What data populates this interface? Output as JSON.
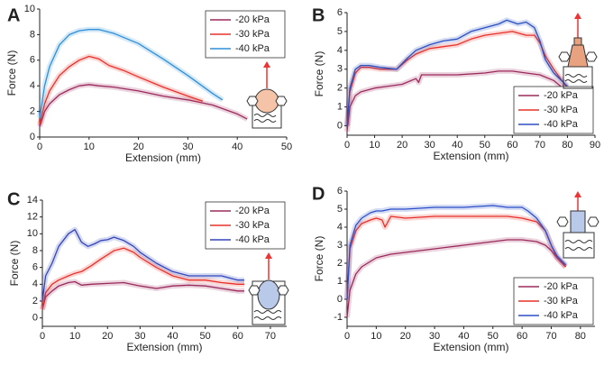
{
  "chart_data": [
    {
      "type": "line",
      "label": "A",
      "xlabel": "Extension (mm)",
      "ylabel": "Force (N)",
      "xlim": [
        0,
        50
      ],
      "xticks": [
        0,
        10,
        20,
        30,
        40,
        50
      ],
      "ylim": [
        0,
        10
      ],
      "yticks": [
        0,
        2,
        4,
        6,
        8,
        10
      ],
      "legend": "upper-right",
      "series": [
        {
          "name": "-20 kPa",
          "color": "#9b2a5c",
          "x": [
            0,
            1,
            2,
            4,
            6,
            8,
            10,
            12,
            15,
            20,
            25,
            30,
            35,
            40,
            42
          ],
          "values": [
            0.8,
            2,
            2.6,
            3.3,
            3.7,
            4,
            4.1,
            4,
            3.9,
            3.6,
            3.2,
            2.9,
            2.5,
            1.8,
            1.4
          ]
        },
        {
          "name": "-30 kPa",
          "color": "#e8302a",
          "x": [
            0,
            1,
            2,
            4,
            6,
            8,
            10,
            12,
            14,
            17,
            20,
            25,
            30,
            33
          ],
          "values": [
            1,
            2.6,
            3.6,
            4.8,
            5.5,
            6,
            6.3,
            6.1,
            5.6,
            5.2,
            4.7,
            3.9,
            3.2,
            2.8
          ]
        },
        {
          "name": "-40 kPa",
          "color": "#2f8fd8",
          "x": [
            0,
            1,
            2,
            4,
            6,
            8,
            10,
            12,
            15,
            20,
            25,
            30,
            35,
            37
          ],
          "values": [
            1.5,
            4,
            5.5,
            7.2,
            8,
            8.3,
            8.4,
            8.4,
            8.1,
            7.3,
            6.1,
            4.8,
            3.4,
            2.9
          ]
        }
      ]
    },
    {
      "type": "line",
      "label": "B",
      "xlabel": "Extension (mm)",
      "ylabel": "Force (N)",
      "xlim": [
        0,
        90
      ],
      "xticks": [
        0,
        10,
        20,
        30,
        40,
        50,
        60,
        70,
        80,
        90
      ],
      "ylim": [
        -0.5,
        6
      ],
      "yticks": [
        0,
        1,
        2,
        3,
        4,
        5,
        6
      ],
      "legend": "lower-right",
      "series": [
        {
          "name": "-20 kPa",
          "color": "#9b2a5c",
          "x": [
            0,
            1,
            3,
            5,
            10,
            15,
            20,
            25,
            26,
            27,
            30,
            40,
            50,
            55,
            60,
            65,
            70,
            75,
            80
          ],
          "values": [
            -0.3,
            1,
            1.6,
            1.8,
            2,
            2.1,
            2.2,
            2.5,
            2.3,
            2.7,
            2.7,
            2.7,
            2.8,
            2.9,
            2.9,
            2.8,
            2.7,
            2.4,
            1.8
          ]
        },
        {
          "name": "-30 kPa",
          "color": "#e8302a",
          "x": [
            0,
            1,
            3,
            5,
            8,
            12,
            18,
            22,
            25,
            30,
            35,
            40,
            45,
            50,
            55,
            60,
            65,
            68,
            70,
            72,
            75,
            80
          ],
          "values": [
            0,
            1.8,
            2.8,
            3.1,
            3.1,
            3,
            3,
            3.5,
            3.8,
            4.1,
            4.2,
            4.3,
            4.6,
            4.8,
            4.9,
            5,
            4.8,
            4.8,
            4.4,
            3.7,
            3,
            2
          ]
        },
        {
          "name": "-40 kPa",
          "color": "#2a4fc0",
          "x": [
            0,
            1,
            3,
            5,
            8,
            12,
            18,
            22,
            25,
            30,
            35,
            40,
            45,
            50,
            55,
            58,
            62,
            65,
            68,
            70,
            72,
            75,
            80
          ],
          "values": [
            0,
            2,
            3,
            3.2,
            3.2,
            3.1,
            3,
            3.6,
            4,
            4.3,
            4.5,
            4.6,
            5,
            5.2,
            5.4,
            5.6,
            5.4,
            5.5,
            5.2,
            4.5,
            3.5,
            2.8,
            2.1
          ]
        }
      ]
    },
    {
      "type": "line",
      "label": "C",
      "xlabel": "Extension (mm)",
      "ylabel": "Force (N)",
      "xlim": [
        0,
        75
      ],
      "xticks": [
        0,
        10,
        20,
        30,
        40,
        50,
        60,
        70
      ],
      "ylim": [
        -1,
        14
      ],
      "yticks": [
        0,
        2,
        4,
        6,
        8,
        10,
        12,
        14
      ],
      "legend": "upper-right",
      "series": [
        {
          "name": "-20 kPa",
          "color": "#9b2a5c",
          "x": [
            0,
            1,
            3,
            5,
            8,
            10,
            12,
            15,
            20,
            25,
            30,
            35,
            40,
            45,
            50,
            55,
            60,
            62
          ],
          "values": [
            1,
            2.5,
            3.2,
            3.8,
            4.2,
            4.3,
            3.9,
            4,
            4.1,
            4.2,
            3.8,
            3.5,
            3.8,
            3.9,
            3.8,
            3.5,
            3.2,
            3.2
          ]
        },
        {
          "name": "-30 kPa",
          "color": "#e8302a",
          "x": [
            0,
            1,
            3,
            5,
            8,
            10,
            12,
            15,
            18,
            20,
            22,
            25,
            28,
            30,
            35,
            40,
            45,
            50,
            55,
            60,
            62
          ],
          "values": [
            1,
            3,
            4,
            4.5,
            5,
            5.3,
            5.5,
            6.2,
            7,
            7.5,
            8,
            8.3,
            7.8,
            7.2,
            6,
            5,
            4.5,
            4.5,
            4.2,
            4,
            4
          ]
        },
        {
          "name": "-40 kPa",
          "color": "#3344bb",
          "x": [
            0,
            1,
            3,
            5,
            8,
            10,
            12,
            14,
            16,
            18,
            20,
            22,
            25,
            28,
            30,
            35,
            40,
            45,
            50,
            55,
            60,
            62
          ],
          "values": [
            2,
            5,
            6.5,
            8.5,
            10,
            10.5,
            9,
            8.5,
            8.8,
            9.2,
            9.3,
            9.6,
            9.2,
            8.5,
            7.8,
            6.5,
            5.5,
            5,
            5,
            5,
            4.5,
            4.5
          ]
        }
      ]
    },
    {
      "type": "line",
      "label": "D",
      "xlabel": "Extension (mm)",
      "ylabel": "Force (N)",
      "xlim": [
        0,
        85
      ],
      "xticks": [
        0,
        10,
        20,
        30,
        40,
        50,
        60,
        70,
        80
      ],
      "ylim": [
        -1.5,
        6
      ],
      "yticks": [
        -1,
        0,
        1,
        2,
        3,
        4,
        5,
        6
      ],
      "legend": "lower-right",
      "series": [
        {
          "name": "-20 kPa",
          "color": "#9b2a5c",
          "x": [
            0,
            1,
            3,
            5,
            8,
            10,
            15,
            20,
            25,
            30,
            35,
            40,
            45,
            50,
            55,
            60,
            65,
            68,
            70,
            72,
            75
          ],
          "values": [
            -1,
            0.5,
            1.4,
            1.8,
            2.1,
            2.3,
            2.5,
            2.6,
            2.7,
            2.8,
            2.9,
            3,
            3.1,
            3.2,
            3.3,
            3.3,
            3.2,
            3,
            2.7,
            2.3,
            1.8
          ]
        },
        {
          "name": "-30 kPa",
          "color": "#e8302a",
          "x": [
            0,
            1,
            3,
            5,
            8,
            10,
            12,
            13,
            15,
            20,
            30,
            40,
            50,
            55,
            60,
            65,
            68,
            70,
            72,
            75
          ],
          "values": [
            0,
            2.8,
            3.8,
            4.2,
            4.4,
            4.5,
            4.4,
            4,
            4.6,
            4.5,
            4.6,
            4.6,
            4.6,
            4.6,
            4.5,
            4.3,
            3.8,
            3,
            2.3,
            1.8
          ]
        },
        {
          "name": "-40 kPa",
          "color": "#2b4fc8",
          "x": [
            0,
            1,
            3,
            5,
            8,
            10,
            12,
            15,
            20,
            30,
            40,
            50,
            55,
            60,
            62,
            65,
            68,
            70,
            72,
            75
          ],
          "values": [
            0,
            3,
            4.1,
            4.5,
            4.8,
            4.9,
            4.9,
            5,
            5,
            5.1,
            5.1,
            5.2,
            5.1,
            5.1,
            4.9,
            4.5,
            3.8,
            3,
            2.4,
            1.9
          ]
        }
      ]
    }
  ]
}
